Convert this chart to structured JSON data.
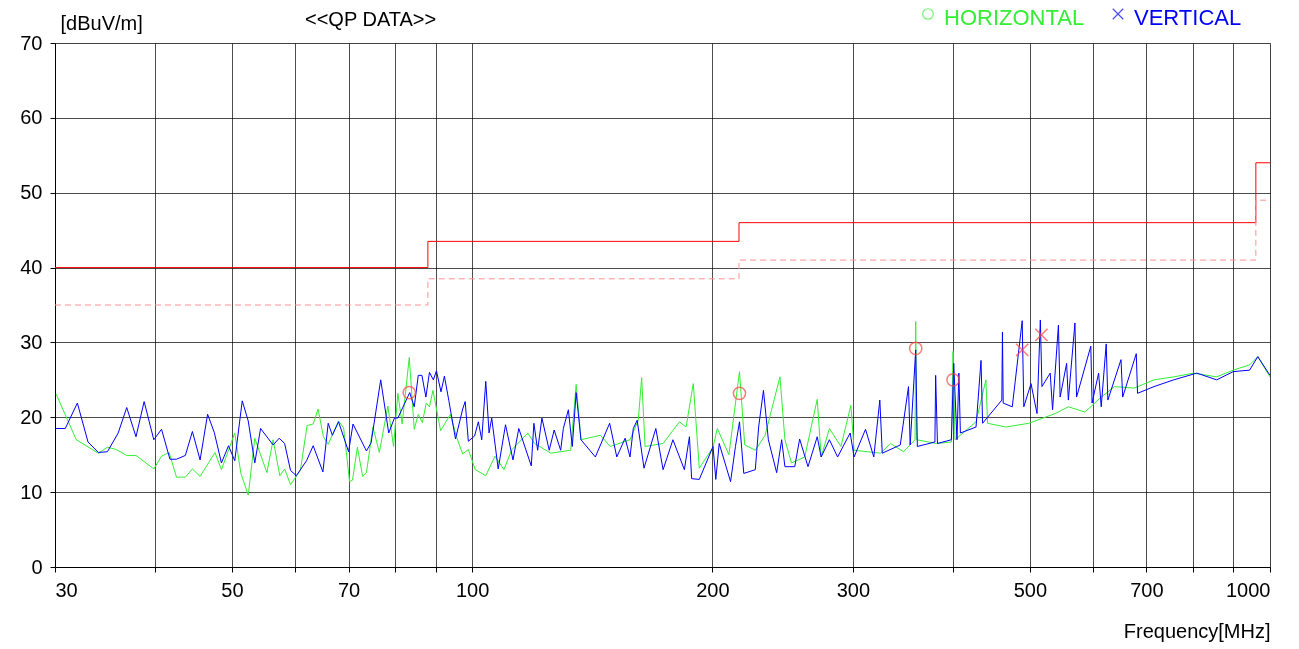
{
  "chart_data": {
    "type": "line",
    "title": "<<QP DATA>>",
    "xlabel": "Frequency[MHz]",
    "ylabel": "[dBuV/m]",
    "log": "x",
    "grid": true,
    "legend": "top right",
    "xlim": [
      30,
      1000
    ],
    "ylim": [
      0,
      70
    ],
    "xticks": [
      30,
      {
        "value": 40,
        "label": null
      },
      50,
      {
        "value": 60,
        "label": null
      },
      70,
      {
        "value": 80,
        "label": null
      },
      {
        "value": 90,
        "label": null
      },
      100,
      200,
      300,
      {
        "value": 400,
        "label": null
      },
      500,
      {
        "value": 600,
        "label": null
      },
      700,
      {
        "value": 800,
        "label": null
      },
      {
        "value": 900,
        "label": null
      },
      1000
    ],
    "yticks": [
      0,
      10,
      20,
      30,
      40,
      50,
      60,
      70
    ],
    "series": [
      {
        "name": "HORIZONTAL",
        "color": "#33ee33",
        "x": [
          30.1,
          31.9,
          34.0,
          34.9,
          35.8,
          36.9,
          37.9,
          39.9,
          40.8,
          41.7,
          42.6,
          43.7,
          44.6,
          45.6,
          47.6,
          48.5,
          50.4,
          51.3,
          52.4,
          53.4,
          55.3,
          56.3,
          57.4,
          58.2,
          59.2,
          60.9,
          62.1,
          63.2,
          64.1,
          65.1,
          66.0,
          68.0,
          69.0,
          70.2,
          70.8,
          71.8,
          72.9,
          73.7,
          75.1,
          76.5,
          78.4,
          79.7,
          80.7,
          81.7,
          83.4,
          84.6,
          85.6,
          86.6,
          87.6,
          88.4,
          89.3,
          91.3,
          93.9,
          95.5,
          97.3,
          98.9,
          100.9,
          104.0,
          106.8,
          109.6,
          112.0,
          117.4,
          119.7,
          125.5,
          132.9,
          135.0,
          136.9,
          144.8,
          148.9,
          157.7,
          161.5,
          163.1,
          164.7,
          173.5,
          181.9,
          185.4,
          189.3,
          192.6,
          200.4,
          202.9,
          209.8,
          216.3,
          219.6,
          226.4,
          232.9,
          243.1,
          246.6,
          251.3,
          261.1,
          270.7,
          273.8,
          280.4,
          289.9,
          298.3,
          301.1,
          325.0,
          334.4,
          347.3,
          359.0,
          359.7,
          360.7,
          382.0,
          398.7,
          400.6,
          402.9,
          428.1,
          440.5,
          442.6,
          466.6,
          498.6,
          538,
          558.8,
          586.2,
          614.4,
          638.4,
          676.0,
          715.4,
          757.5,
          802.0,
          857.4,
          899.3,
          942.8,
          965.4,
          1000
        ],
        "values": [
          23.1,
          17.0,
          15.2,
          16.0,
          15.7,
          14.9,
          14.9,
          13.1,
          14.8,
          15.3,
          12.0,
          12.0,
          13.1,
          12.1,
          15.3,
          13.0,
          17.9,
          12.5,
          9.6,
          17.2,
          12.6,
          17.0,
          12.2,
          13.1,
          11.0,
          12.9,
          18.9,
          19.1,
          21.1,
          17.4,
          16.4,
          19.5,
          18.6,
          11.4,
          11.6,
          16.0,
          12.1,
          12.6,
          18.7,
          15.3,
          21.5,
          16.1,
          23.2,
          19.1,
          28.0,
          18.4,
          20.4,
          19.3,
          21.9,
          21.4,
          23.6,
          18.2,
          20.4,
          17.5,
          15.1,
          15.7,
          13.0,
          12.2,
          14.8,
          13.0,
          15.6,
          17.9,
          16.5,
          15.2,
          15.6,
          24.4,
          17.0,
          17.6,
          16.1,
          17.0,
          19.6,
          25.3,
          16.1,
          16.5,
          19.4,
          18.7,
          24.5,
          13.2,
          16.0,
          18.5,
          15.0,
          26.1,
          16.3,
          15.6,
          17.6,
          25.4,
          17.0,
          13.9,
          14.7,
          22.4,
          14.7,
          18.5,
          16.1,
          21.6,
          15.6,
          15.2,
          16.5,
          15.4,
          17.0,
          32.8,
          17.0,
          16.5,
          16.7,
          28.8,
          17.0,
          19.4,
          25.0,
          19.2,
          18.7,
          19.2,
          20.5,
          21.4,
          20.7,
          22.7,
          24.1,
          23.9,
          25.0,
          25.4,
          25.9,
          25.4,
          26.3,
          27.0,
          28.1,
          25.4
        ]
      },
      {
        "name": "VERTICAL",
        "color": "#0000ff",
        "x": [
          30.1,
          30.9,
          32.0,
          33.0,
          34.0,
          34.9,
          36.0,
          36.9,
          37.9,
          38.8,
          39.9,
          40.8,
          41.8,
          42.6,
          43.7,
          44.6,
          45.6,
          46.6,
          47.5,
          48.5,
          49.5,
          50.4,
          51.5,
          52.4,
          53.4,
          54.3,
          56.3,
          57.3,
          58.2,
          59.2,
          60.2,
          62.0,
          63.2,
          65.0,
          66.0,
          66.8,
          68.0,
          70.0,
          70.9,
          73.7,
          74.7,
          76.8,
          78.6,
          79.9,
          80.7,
          83.5,
          84.6,
          85.6,
          86.5,
          87.5,
          88.4,
          89.4,
          90.2,
          91.4,
          92.3,
          93.5,
          95.3,
          97.3,
          98.0,
          98.9,
          100.7,
          101.8,
          102.8,
          104.0,
          105.0,
          105.8,
          107.8,
          110.1,
          112.5,
          114.4,
          118.6,
          119.5,
          120.8,
          122.3,
          124.9,
          126.7,
          129.1,
          130.1,
          132.0,
          133.5,
          135.0,
          136.9,
          142.7,
          148.7,
          151.8,
          155.5,
          157.7,
          159.2,
          161.0,
          164.2,
          169.9,
          173.5,
          178.5,
          184.5,
          187.2,
          188.4,
          192.6,
          200.4,
          202.0,
          204.0,
          210.8,
          213.8,
          216.3,
          219.0,
          226.4,
          228.6,
          231.8,
          235.1,
          240.8,
          244.3,
          246.6,
          253.7,
          257.3,
          263.6,
          270.7,
          273.8,
          280.4,
          287.1,
          297.7,
          301.1,
          311.2,
          318.7,
          324.3,
          326.6,
          344.0,
          352.3,
          354.0,
          359.7,
          361.4,
          380.2,
          381.0,
          383.0,
          398.7,
          401.4,
          405.2,
          407.4,
          409.2,
          428.1,
          434.3,
          436.3,
          461.2,
          462.0,
          463.0,
          475.3,
          489.1,
          491.4,
          501.7,
          510.5,
          515.4,
          517.8,
          530.3,
          533.9,
          543.0,
          545.7,
          556.0,
          558.8,
          569.5,
          572.2,
          596.2,
          598.4,
          609.8,
          614.4,
          623.3,
          626.3,
          650.5,
          653.7,
          679.8,
          682.3,
          715.4,
          757.5,
          809.6,
          857.4,
          899.3,
          942.8,
          965.4,
          1000
        ],
        "values": [
          18.5,
          18.5,
          21.9,
          16.7,
          15.3,
          15.4,
          17.9,
          21.3,
          17.4,
          22.1,
          17.0,
          18.4,
          14.4,
          14.4,
          14.9,
          18.1,
          14.3,
          20.4,
          18.0,
          13.9,
          16.2,
          14.2,
          22.2,
          19.5,
          13.9,
          18.5,
          16.3,
          17.2,
          16.5,
          12.9,
          12.2,
          14.2,
          16.2,
          12.7,
          19.2,
          17.6,
          19.4,
          15.4,
          19.1,
          15.5,
          16.6,
          25.0,
          17.9,
          19.9,
          19.9,
          23.3,
          21.4,
          25.6,
          25.6,
          22.7,
          26.0,
          25.0,
          26.2,
          23.4,
          25.5,
          22.2,
          17.1,
          21.1,
          22.1,
          16.8,
          17.5,
          19.4,
          17.0,
          24.8,
          17.9,
          19.9,
          13.1,
          19.0,
          14.3,
          18.5,
          13.5,
          19.2,
          15.6,
          19.9,
          15.6,
          18.3,
          15.6,
          18.5,
          21.0,
          16.1,
          23.3,
          17.0,
          14.7,
          19.2,
          14.7,
          17.2,
          14.7,
          18.5,
          19.6,
          13.2,
          18.5,
          13.0,
          17.0,
          13.0,
          17.4,
          11.8,
          11.7,
          16.1,
          11.7,
          16.5,
          11.4,
          16.1,
          19.4,
          12.5,
          13.0,
          18.7,
          23.6,
          17.0,
          12.6,
          17.0,
          13.4,
          13.4,
          17.1,
          13.4,
          17.4,
          14.7,
          17.0,
          14.7,
          17.9,
          14.7,
          18.4,
          14.7,
          22.3,
          15.2,
          16.3,
          24.1,
          16.3,
          29.0,
          16.1,
          16.7,
          25.6,
          16.5,
          17.0,
          27.2,
          17.0,
          25.9,
          17.9,
          18.7,
          27.6,
          19.2,
          22.3,
          31.4,
          21.9,
          21.4,
          32.9,
          21.4,
          24.5,
          20.5,
          33.0,
          24.1,
          25.9,
          21.0,
          32.3,
          22.7,
          27.2,
          22.3,
          32.6,
          22.7,
          29.5,
          21.9,
          25.9,
          21.4,
          29.8,
          22.3,
          27.7,
          22.7,
          28.5,
          23.2,
          24.1,
          25.0,
          25.9,
          25.0,
          26.1,
          26.3,
          28.1,
          25.6
        ]
      },
      {
        "color": "#ff0000",
        "line_style": "solid",
        "x": [
          30,
          88,
          88,
          216,
          216,
          960,
          960,
          1000
        ],
        "values": [
          40,
          40,
          43.5,
          43.5,
          46,
          46,
          54,
          54
        ]
      },
      {
        "color": "#ff9090",
        "line_style": "dashed",
        "x": [
          30,
          88,
          88,
          216,
          216,
          960,
          960,
          1000
        ],
        "values": [
          35,
          35,
          38.5,
          38.5,
          41,
          41,
          49,
          49
        ]
      },
      {
        "color": "#ff4040",
        "type": "scatter",
        "marker": "circle",
        "x": [
          83.4,
          216.3,
          359.7,
          400.6
        ],
        "values": [
          23.3,
          23.2,
          29.2,
          25.0
        ]
      },
      {
        "color": "#ff4040",
        "type": "scatter",
        "marker": "cross",
        "x": [
          489.1,
          517.0
        ],
        "values": [
          29.0,
          31.0
        ]
      }
    ]
  }
}
